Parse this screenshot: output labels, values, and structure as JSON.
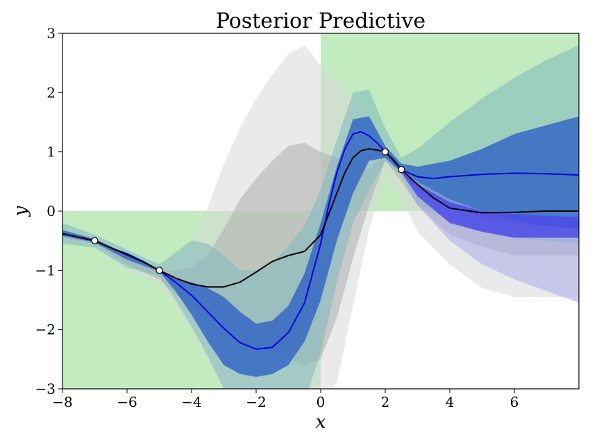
{
  "chart_data": {
    "type": "line",
    "title": "Posterior Predictive",
    "xlabel": "x",
    "ylabel": "y",
    "xlim": [
      -8,
      8
    ],
    "ylim": [
      -3,
      3
    ],
    "xticks": [
      -8,
      -6,
      -4,
      -2,
      0,
      2,
      4,
      6
    ],
    "yticks": [
      -3,
      -2,
      -1,
      0,
      1,
      2,
      3
    ],
    "xtick_labels": [
      "−8",
      "−6",
      "−4",
      "−2",
      "0",
      "2",
      "4",
      "6"
    ],
    "ytick_labels": [
      "−3",
      "−2",
      "−1",
      "0",
      "1",
      "2",
      "3"
    ],
    "grid": false,
    "quadrant_fill": {
      "color": "#c2ebbf",
      "regions": [
        {
          "x": [
            -8,
            0
          ],
          "y": [
            -3,
            0
          ]
        },
        {
          "x": [
            0,
            8
          ],
          "y": [
            0,
            3
          ]
        }
      ]
    },
    "observations": {
      "x": [
        -7,
        -5,
        2,
        2.5
      ],
      "y": [
        -0.5,
        -1,
        1,
        0.7
      ]
    },
    "series": [
      {
        "role": "prior-outer-band",
        "color": "#d9d9d9",
        "opacity": 0.55,
        "x": [
          -8,
          -7,
          -6,
          -5,
          -4.5,
          -4,
          -3.5,
          -3,
          -2.5,
          -2,
          -1.5,
          -1,
          -0.5,
          0,
          0.5,
          1,
          1.5,
          2,
          2.5,
          3,
          4,
          5,
          6,
          7,
          8
        ],
        "upper": [
          -0.35,
          -0.45,
          -0.75,
          -1.0,
          -0.85,
          -0.5,
          0.05,
          0.8,
          1.4,
          1.9,
          2.3,
          2.65,
          2.8,
          2.45,
          2.2,
          1.9,
          1.55,
          1.1,
          0.6,
          0.2,
          -0.1,
          -0.3,
          -0.45,
          -0.5,
          -0.5
        ],
        "lower": [
          -0.5,
          -0.6,
          -1.0,
          -1.25,
          -1.6,
          -2.0,
          -2.5,
          -3.0,
          -3.2,
          -3.2,
          -3.2,
          -3.2,
          -3.2,
          -3.2,
          -2.9,
          -1.6,
          -0.3,
          0.6,
          0.2,
          -0.35,
          -0.9,
          -1.3,
          -1.45,
          -1.45,
          -1.45
        ]
      },
      {
        "role": "prior-inner-band",
        "color": "#b3b3b3",
        "opacity": 0.6,
        "x": [
          -8,
          -7,
          -6,
          -5,
          -4.5,
          -4,
          -3.5,
          -3,
          -2.5,
          -2,
          -1.5,
          -1,
          -0.5,
          0,
          0.5,
          1,
          1.5,
          2,
          2.5,
          3,
          4,
          5,
          6,
          7,
          8
        ],
        "upper": [
          -0.4,
          -0.48,
          -0.8,
          -1.02,
          -1.0,
          -0.95,
          -0.75,
          -0.3,
          0.2,
          0.55,
          0.85,
          1.1,
          1.15,
          1.0,
          0.9,
          0.8,
          0.7,
          0.95,
          0.6,
          0.3,
          0.1,
          -0.1,
          -0.2,
          -0.25,
          -0.25
        ],
        "lower": [
          -0.45,
          -0.55,
          -0.9,
          -1.15,
          -1.4,
          -1.6,
          -1.9,
          -2.1,
          -2.2,
          -2.3,
          -2.4,
          -2.5,
          -2.6,
          -2.5,
          -1.8,
          -0.8,
          0.1,
          0.85,
          0.5,
          0.1,
          -0.4,
          -0.6,
          -0.75,
          -0.75,
          -0.75
        ]
      },
      {
        "role": "posterior-outer-band",
        "color": "#7fb8bf",
        "opacity": 0.55,
        "x": [
          -8,
          -7,
          -6,
          -5,
          -4.5,
          -4,
          -3.5,
          -3,
          -2.5,
          -2,
          -1.5,
          -1,
          -0.5,
          0,
          0.5,
          1,
          1.5,
          2,
          2.5,
          3,
          4,
          5,
          6,
          7,
          8
        ],
        "upper": [
          -0.2,
          -0.4,
          -0.65,
          -0.9,
          -0.7,
          -0.5,
          -0.55,
          -0.75,
          -1.0,
          -1.0,
          -0.85,
          -0.6,
          -0.25,
          0.35,
          1.2,
          2.0,
          2.05,
          1.4,
          0.9,
          1.05,
          1.5,
          1.9,
          2.25,
          2.55,
          2.8
        ],
        "lower": [
          -0.55,
          -0.62,
          -0.95,
          -1.1,
          -1.5,
          -1.95,
          -2.45,
          -3.0,
          -3.2,
          -3.2,
          -3.2,
          -3.2,
          -3.2,
          -2.4,
          -1.2,
          -0.2,
          0.35,
          0.85,
          0.6,
          0.1,
          -0.15,
          -0.35,
          -0.45,
          -0.5,
          -0.55
        ]
      },
      {
        "role": "posterior-inner-band",
        "color": "#3264c3",
        "opacity": 0.82,
        "x": [
          -8,
          -7,
          -6,
          -5,
          -4.5,
          -4,
          -3.5,
          -3,
          -2.5,
          -2,
          -1.5,
          -1,
          -0.5,
          0,
          0.5,
          1,
          1.5,
          2,
          2.5,
          3,
          4,
          5,
          6,
          7,
          8
        ],
        "upper": [
          -0.32,
          -0.47,
          -0.73,
          -0.98,
          -1.15,
          -1.2,
          -1.3,
          -1.45,
          -1.7,
          -1.9,
          -1.85,
          -1.6,
          -1.05,
          -0.2,
          0.75,
          1.55,
          1.6,
          1.1,
          0.8,
          0.75,
          0.85,
          1.05,
          1.3,
          1.45,
          1.6
        ],
        "lower": [
          -0.42,
          -0.53,
          -0.82,
          -1.02,
          -1.35,
          -1.75,
          -2.2,
          -2.6,
          -2.75,
          -2.8,
          -2.75,
          -2.6,
          -2.2,
          -1.5,
          -0.5,
          0.3,
          0.85,
          0.9,
          0.65,
          0.35,
          0.05,
          -0.1,
          -0.2,
          -0.25,
          -0.3
        ]
      },
      {
        "role": "posterior-light-tail",
        "color": "#a9a9e8",
        "opacity": 0.55,
        "x": [
          2.5,
          3,
          4,
          5,
          6,
          7,
          8
        ],
        "upper": [
          0.7,
          0.5,
          0.2,
          0.0,
          -0.15,
          -0.3,
          -0.4
        ],
        "lower": [
          0.6,
          0.1,
          -0.5,
          -0.9,
          -1.15,
          -1.35,
          -1.55
        ]
      },
      {
        "role": "posterior-blue-tail",
        "color": "#4b4be8",
        "opacity": 0.85,
        "x": [
          2.5,
          3,
          4,
          5,
          6,
          7,
          8
        ],
        "upper": [
          0.7,
          0.45,
          0.15,
          0.0,
          -0.05,
          -0.08,
          -0.1
        ],
        "lower": [
          0.65,
          0.25,
          -0.2,
          -0.35,
          -0.45,
          -0.45,
          -0.45
        ]
      },
      {
        "role": "posterior-mean",
        "color": "#0000dd",
        "stroke_width": 2,
        "x": [
          -8,
          -7.5,
          -7,
          -6.5,
          -6,
          -5.5,
          -5,
          -4.5,
          -4,
          -3.5,
          -3,
          -2.5,
          -2,
          -1.5,
          -1,
          -0.5,
          0,
          0.25,
          0.5,
          0.75,
          1,
          1.25,
          1.5,
          1.75,
          2,
          2.25,
          2.5,
          3,
          3.5,
          4,
          5,
          6,
          7,
          8
        ],
        "y": [
          -0.38,
          -0.44,
          -0.5,
          -0.62,
          -0.72,
          -0.85,
          -1.0,
          -1.2,
          -1.42,
          -1.7,
          -1.98,
          -2.22,
          -2.33,
          -2.3,
          -2.05,
          -1.55,
          -0.55,
          0.1,
          0.65,
          1.05,
          1.3,
          1.34,
          1.27,
          1.15,
          1.0,
          0.85,
          0.7,
          0.58,
          0.55,
          0.58,
          0.62,
          0.64,
          0.63,
          0.61
        ]
      },
      {
        "role": "prior-mean",
        "color": "#000000",
        "stroke_width": 2,
        "x": [
          -8,
          -7.5,
          -7,
          -6.5,
          -6,
          -5.5,
          -5,
          -4.5,
          -4,
          -3.5,
          -3,
          -2.5,
          -2,
          -1.5,
          -1,
          -0.5,
          0,
          0.25,
          0.5,
          0.75,
          1,
          1.25,
          1.5,
          1.75,
          2,
          2.25,
          2.5,
          3,
          3.5,
          4,
          5,
          6,
          7,
          8
        ],
        "y": [
          -0.38,
          -0.44,
          -0.5,
          -0.62,
          -0.74,
          -0.86,
          -1.0,
          -1.13,
          -1.23,
          -1.28,
          -1.28,
          -1.2,
          -1.03,
          -0.85,
          -0.75,
          -0.68,
          -0.4,
          -0.05,
          0.3,
          0.65,
          0.9,
          1.02,
          1.05,
          1.03,
          1.0,
          0.87,
          0.7,
          0.45,
          0.22,
          0.05,
          -0.03,
          -0.02,
          0.0,
          0.0
        ]
      }
    ]
  }
}
